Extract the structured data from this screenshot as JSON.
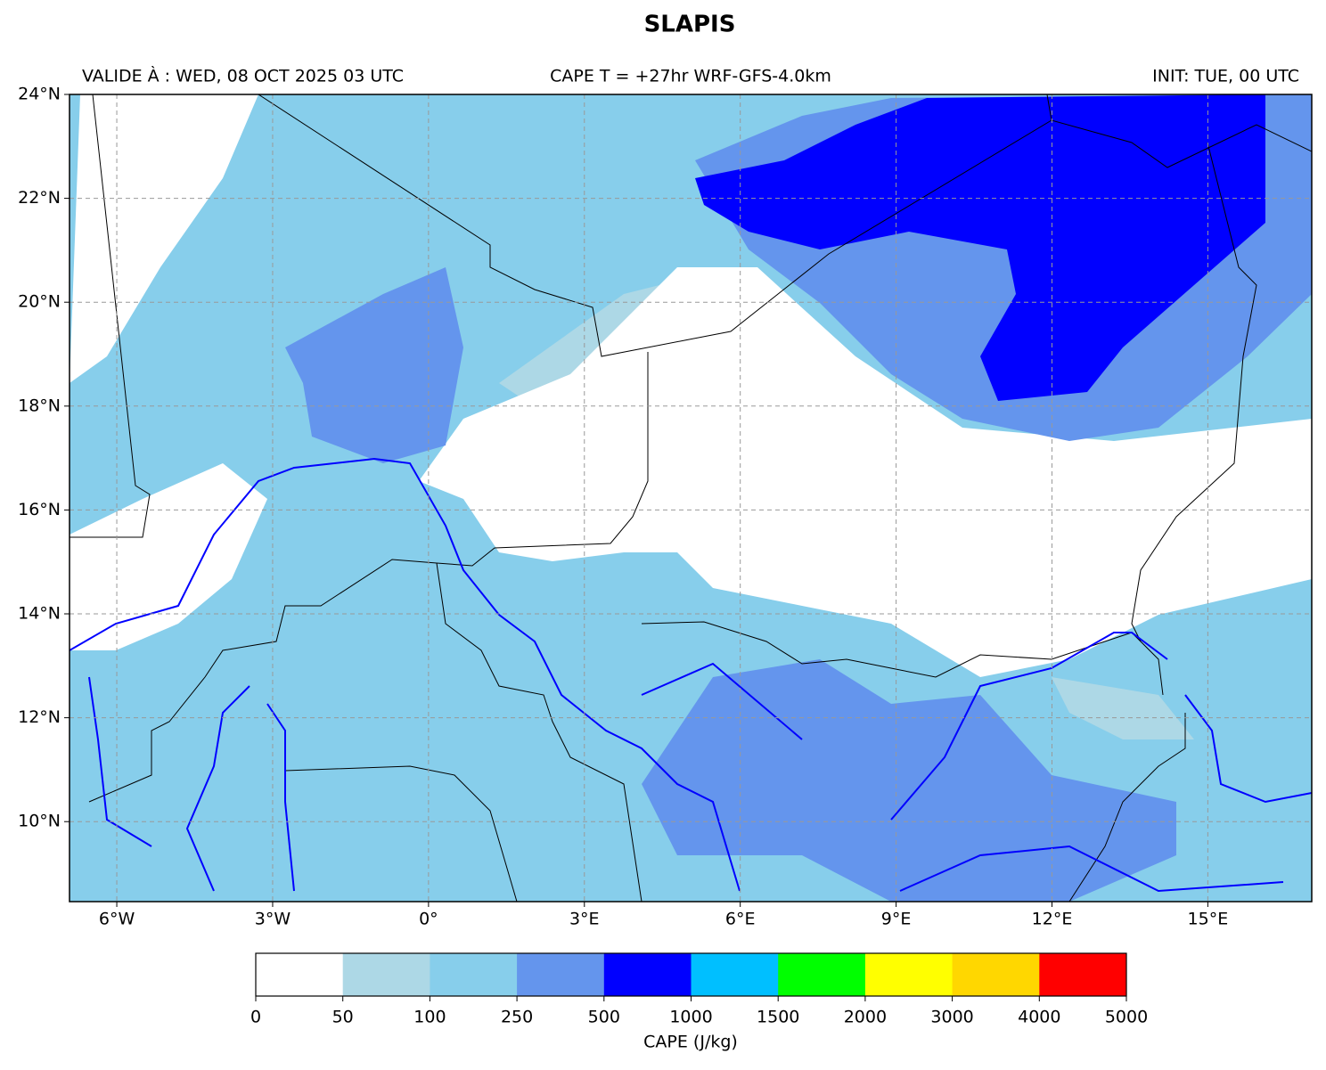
{
  "title": "SLAPIS",
  "header": {
    "valid": "VALIDE À : WED, 08 OCT 2025 03 UTC",
    "center": "CAPE T = +27hr WRF-GFS-4.0km",
    "init": "INIT: TUE, 00 UTC"
  },
  "map": {
    "xlim": [
      -6.91,
      17.0
    ],
    "ylim": [
      8.46,
      24
    ],
    "xticks": [
      {
        "value": -6,
        "label": "6°W"
      },
      {
        "value": -3,
        "label": "3°W"
      },
      {
        "value": 0,
        "label": "0°"
      },
      {
        "value": 3,
        "label": "3°E"
      },
      {
        "value": 6,
        "label": "6°E"
      },
      {
        "value": 9,
        "label": "9°E"
      },
      {
        "value": 12,
        "label": "12°E"
      },
      {
        "value": 15,
        "label": "15°E"
      }
    ],
    "yticks": [
      {
        "value": 10,
        "label": "10°N"
      },
      {
        "value": 12,
        "label": "12°N"
      },
      {
        "value": 14,
        "label": "14°N"
      },
      {
        "value": 16,
        "label": "16°N"
      },
      {
        "value": 18,
        "label": "18°N"
      },
      {
        "value": 20,
        "label": "20°N"
      },
      {
        "value": 22,
        "label": "22°N"
      },
      {
        "value": 24,
        "label": "24°N"
      }
    ],
    "grid": true
  },
  "colorbar": {
    "label": "CAPE (J/kg)",
    "levels": [
      0,
      50,
      100,
      250,
      500,
      1000,
      1500,
      2000,
      3000,
      4000,
      5000
    ],
    "colors": [
      "#ffffff",
      "#add8e6",
      "#87ceeb",
      "#6495ed",
      "#0000ff",
      "#00bfff",
      "#00ff00",
      "#ffff00",
      "#ffd700",
      "#ff0000"
    ]
  }
}
